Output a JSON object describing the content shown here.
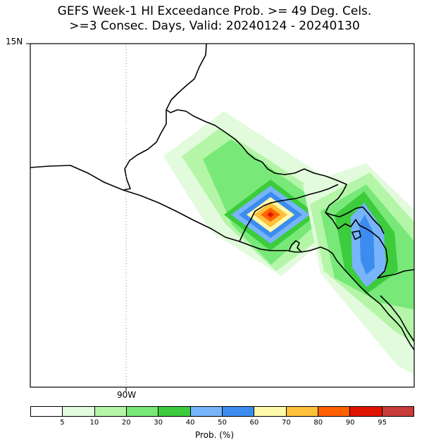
{
  "title": {
    "line1": "GEFS Week-1 HI Exceedance Prob. >= 49 Deg. Cels.",
    "line2": ">=3 Consec. Days, Valid: 20240124 - 20240130"
  },
  "axes": {
    "lat_label": "15N",
    "lon_label": "90W"
  },
  "colorbar": {
    "title": "Prob. (%)",
    "ticks": [
      "5",
      "10",
      "20",
      "30",
      "40",
      "50",
      "60",
      "70",
      "80",
      "90",
      "95"
    ],
    "colors": [
      "#ffffff",
      "#e1fbdc",
      "#b4f5a8",
      "#78e878",
      "#3ccc3c",
      "#78b4fa",
      "#3c8cf0",
      "#fffaaa",
      "#ffc03c",
      "#ff6000",
      "#e11400",
      "#c83c3c"
    ]
  }
}
